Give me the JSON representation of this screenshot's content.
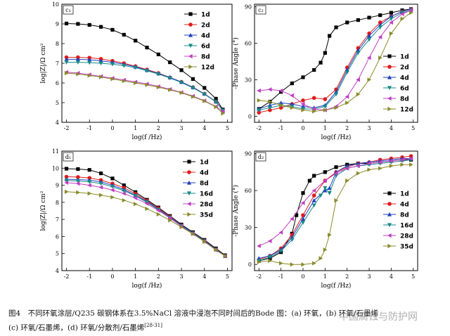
{
  "chart_data": [
    {
      "type": "line",
      "panel_label": "c₁",
      "xlabel": "log(f /Hz)",
      "ylabel": "log|Z|/Ω cm²",
      "xlim": [
        -2.2,
        5.2
      ],
      "ylim": [
        4,
        10
      ],
      "xticks": [
        -2,
        -1,
        0,
        1,
        2,
        3,
        4,
        5
      ],
      "yticks": [
        4,
        5,
        6,
        7,
        8,
        9,
        10
      ],
      "legend_position": "top-right",
      "series": [
        {
          "name": "1d",
          "color": "#000000",
          "marker": "square",
          "x": [
            -2,
            -1.5,
            -1,
            -0.5,
            0,
            0.5,
            1,
            1.5,
            2,
            2.5,
            3,
            3.5,
            4,
            4.5,
            4.8
          ],
          "y": [
            9.02,
            9.0,
            8.95,
            8.85,
            8.7,
            8.45,
            8.15,
            7.8,
            7.45,
            7.05,
            6.65,
            6.2,
            5.75,
            5.2,
            4.65
          ]
        },
        {
          "name": "2d",
          "color": "#e01b1b",
          "marker": "circle",
          "x": [
            -2,
            -1.5,
            -1,
            -0.5,
            0,
            0.5,
            1,
            1.5,
            2,
            2.5,
            3,
            3.5,
            4,
            4.5,
            4.8
          ],
          "y": [
            7.3,
            7.3,
            7.28,
            7.22,
            7.12,
            7.0,
            6.85,
            6.68,
            6.5,
            6.28,
            6.05,
            5.78,
            5.45,
            5.05,
            4.6
          ]
        },
        {
          "name": "4d",
          "color": "#1f3fbf",
          "marker": "triangle-up",
          "x": [
            -2,
            -1.5,
            -1,
            -0.5,
            0,
            0.5,
            1,
            1.5,
            2,
            2.5,
            3,
            3.5,
            4,
            4.5,
            4.8
          ],
          "y": [
            7.2,
            7.2,
            7.18,
            7.12,
            7.05,
            6.95,
            6.82,
            6.65,
            6.48,
            6.28,
            6.05,
            5.78,
            5.45,
            5.05,
            4.6
          ]
        },
        {
          "name": "6d",
          "color": "#1a8a8a",
          "marker": "triangle-down",
          "x": [
            -2,
            -1.5,
            -1,
            -0.5,
            0,
            0.5,
            1,
            1.5,
            2,
            2.5,
            3,
            3.5,
            4,
            4.5,
            4.8
          ],
          "y": [
            7.05,
            7.05,
            7.03,
            7.0,
            6.95,
            6.88,
            6.78,
            6.62,
            6.45,
            6.25,
            6.02,
            5.75,
            5.43,
            5.03,
            4.6
          ]
        },
        {
          "name": "8d",
          "color": "#c03fc0",
          "marker": "triangle-left",
          "x": [
            -2,
            -1.5,
            -1,
            -0.5,
            0,
            0.5,
            1,
            1.5,
            2,
            2.5,
            3,
            3.5,
            4,
            4.5,
            4.8
          ],
          "y": [
            6.55,
            6.5,
            6.42,
            6.33,
            6.24,
            6.15,
            6.05,
            5.95,
            5.82,
            5.68,
            5.52,
            5.33,
            5.1,
            4.8,
            4.55
          ]
        },
        {
          "name": "12d",
          "color": "#8a8a2a",
          "marker": "triangle-right",
          "x": [
            -2,
            -1.5,
            -1,
            -0.5,
            0,
            0.5,
            1,
            1.5,
            2,
            2.5,
            3,
            3.5,
            4,
            4.5,
            4.8
          ],
          "y": [
            6.5,
            6.45,
            6.38,
            6.3,
            6.2,
            6.1,
            6.0,
            5.9,
            5.78,
            5.65,
            5.5,
            5.3,
            5.08,
            4.78,
            4.45
          ]
        }
      ]
    },
    {
      "type": "line",
      "panel_label": "c₂",
      "xlabel": "log(f /Hz)",
      "ylabel": "-Phase Angle (°)",
      "xlim": [
        -2.2,
        5.2
      ],
      "ylim": [
        -5,
        92
      ],
      "xticks": [
        -2,
        -1,
        0,
        1,
        2,
        3,
        4,
        5
      ],
      "yticks": [
        0,
        30,
        60,
        90
      ],
      "legend_position": "right",
      "series": [
        {
          "name": "1d",
          "color": "#000000",
          "marker": "square",
          "x": [
            -2,
            -1.5,
            -1,
            -0.5,
            0,
            0.5,
            0.8,
            1,
            1.2,
            1.5,
            2,
            2.5,
            3,
            3.5,
            4,
            4.5,
            4.9
          ],
          "y": [
            6,
            12,
            20,
            27,
            32,
            38,
            44,
            52,
            66,
            73,
            77,
            79,
            81,
            83,
            85,
            87,
            88
          ]
        },
        {
          "name": "2d",
          "color": "#e01b1b",
          "marker": "circle",
          "x": [
            -2,
            -1.5,
            -1,
            -0.5,
            0,
            0.5,
            1,
            1.5,
            2,
            2.5,
            3,
            3.5,
            4,
            4.5,
            4.9
          ],
          "y": [
            3,
            5,
            7,
            10,
            13,
            15,
            14,
            22,
            40,
            56,
            68,
            77,
            82,
            86,
            88
          ]
        },
        {
          "name": "4d",
          "color": "#1f3fbf",
          "marker": "triangle-up",
          "x": [
            -2,
            -1.5,
            -1,
            -0.5,
            0,
            0.5,
            1,
            1.5,
            2,
            2.5,
            3,
            3.5,
            4,
            4.5,
            4.9
          ],
          "y": [
            6,
            9,
            11,
            10,
            8,
            7,
            9,
            20,
            38,
            54,
            66,
            75,
            82,
            86,
            88
          ]
        },
        {
          "name": "6d",
          "color": "#1a8a8a",
          "marker": "triangle-down",
          "x": [
            -2,
            -1.5,
            -1,
            -0.5,
            0,
            0.5,
            1,
            1.5,
            2,
            2.5,
            3,
            3.5,
            4,
            4.5,
            4.9
          ],
          "y": [
            5,
            7,
            9,
            8,
            6,
            6,
            8,
            18,
            36,
            52,
            63,
            73,
            80,
            85,
            87
          ]
        },
        {
          "name": "8d",
          "color": "#c03fc0",
          "marker": "triangle-left",
          "x": [
            -2,
            -1.5,
            -1,
            -0.5,
            0,
            0.5,
            1,
            1.5,
            2,
            2.5,
            3,
            3.5,
            4,
            4.5,
            4.9
          ],
          "y": [
            21,
            22,
            21,
            17,
            10,
            6,
            5,
            8,
            16,
            30,
            48,
            65,
            77,
            84,
            87
          ]
        },
        {
          "name": "12d",
          "color": "#8a8a2a",
          "marker": "triangle-right",
          "x": [
            -2,
            -1.5,
            -1,
            -0.5,
            0,
            0.5,
            1,
            1.5,
            2,
            2.5,
            3,
            3.5,
            4,
            4.5,
            4.9
          ],
          "y": [
            13,
            12,
            9,
            7,
            5,
            4,
            5,
            7,
            11,
            18,
            30,
            48,
            68,
            80,
            85
          ]
        }
      ]
    },
    {
      "type": "line",
      "panel_label": "d₁",
      "xlabel": "log(f /Hz)",
      "ylabel": "log|Z|/Ω cm²",
      "xlim": [
        -2.2,
        5.2
      ],
      "ylim": [
        4,
        11
      ],
      "xticks": [
        -2,
        -1,
        0,
        1,
        2,
        3,
        4,
        5
      ],
      "yticks": [
        4,
        5,
        6,
        7,
        8,
        9,
        10,
        11
      ],
      "legend_position": "top-right",
      "series": [
        {
          "name": "1d",
          "color": "#000000",
          "marker": "square",
          "x": [
            -2,
            -1.5,
            -1,
            -0.5,
            0,
            0.5,
            1,
            1.5,
            2,
            2.5,
            3,
            3.5,
            4,
            4.5,
            4.9
          ],
          "y": [
            9.97,
            9.95,
            9.9,
            9.7,
            9.4,
            9.0,
            8.6,
            8.15,
            7.7,
            7.2,
            6.7,
            6.25,
            5.8,
            5.3,
            4.9
          ]
        },
        {
          "name": "4d",
          "color": "#e01b1b",
          "marker": "circle",
          "x": [
            -2,
            -1.5,
            -1,
            -0.5,
            0,
            0.5,
            1,
            1.5,
            2,
            2.5,
            3,
            3.5,
            4,
            4.5,
            4.9
          ],
          "y": [
            9.5,
            9.48,
            9.43,
            9.3,
            9.1,
            8.85,
            8.5,
            8.1,
            7.65,
            7.15,
            6.65,
            6.2,
            5.75,
            5.25,
            4.85
          ]
        },
        {
          "name": "8d",
          "color": "#1f3fbf",
          "marker": "triangle-up",
          "x": [
            -2,
            -1.5,
            -1,
            -0.5,
            0,
            0.5,
            1,
            1.5,
            2,
            2.5,
            3,
            3.5,
            4,
            4.5,
            4.9
          ],
          "y": [
            9.35,
            9.33,
            9.3,
            9.2,
            9.0,
            8.75,
            8.42,
            8.05,
            7.6,
            7.12,
            6.65,
            6.2,
            5.75,
            5.25,
            4.85
          ]
        },
        {
          "name": "16d",
          "color": "#1a8a8a",
          "marker": "triangle-down",
          "x": [
            -2,
            -1.5,
            -1,
            -0.5,
            0,
            0.5,
            1,
            1.5,
            2,
            2.5,
            3,
            3.5,
            4,
            4.5,
            4.9
          ],
          "y": [
            9.28,
            9.25,
            9.2,
            9.1,
            8.92,
            8.68,
            8.38,
            8.0,
            7.57,
            7.1,
            6.62,
            6.18,
            5.72,
            5.22,
            4.85
          ]
        },
        {
          "name": "28d",
          "color": "#c03fc0",
          "marker": "triangle-left",
          "x": [
            -2,
            -1.5,
            -1,
            -0.5,
            0,
            0.5,
            1,
            1.5,
            2,
            2.5,
            3,
            3.5,
            4,
            4.5,
            4.9
          ],
          "y": [
            9.15,
            9.1,
            9.0,
            8.88,
            8.72,
            8.52,
            8.25,
            7.92,
            7.52,
            7.08,
            6.6,
            6.15,
            5.7,
            5.2,
            4.85
          ]
        },
        {
          "name": "35d",
          "color": "#8a8a2a",
          "marker": "triangle-right",
          "x": [
            -2,
            -1.5,
            -1,
            -0.5,
            0,
            0.5,
            1,
            1.5,
            2,
            2.5,
            3,
            3.5,
            4,
            4.5,
            4.9
          ],
          "y": [
            8.62,
            8.58,
            8.52,
            8.42,
            8.3,
            8.12,
            7.9,
            7.62,
            7.3,
            6.95,
            6.55,
            6.15,
            5.7,
            5.22,
            4.85
          ]
        }
      ]
    },
    {
      "type": "line",
      "panel_label": "d₂",
      "xlabel": "log(f /Hz)",
      "ylabel": "-Phase Angle (°)",
      "xlim": [
        -2.2,
        5.2
      ],
      "ylim": [
        -5,
        92
      ],
      "xticks": [
        -2,
        -1,
        0,
        1,
        2,
        3,
        4,
        5
      ],
      "yticks": [
        0,
        30,
        60,
        90
      ],
      "legend_position": "right",
      "series": [
        {
          "name": "1d",
          "color": "#000000",
          "marker": "square",
          "x": [
            -2,
            -1.5,
            -1,
            -0.5,
            -0.3,
            0,
            0.3,
            0.5,
            1,
            1.5,
            2,
            2.5,
            3,
            3.5,
            4,
            4.5,
            4.9
          ],
          "y": [
            3,
            5,
            10,
            25,
            40,
            58,
            68,
            72,
            75,
            79,
            81,
            82,
            82,
            83,
            84,
            85,
            85
          ]
        },
        {
          "name": "4d",
          "color": "#e01b1b",
          "marker": "circle",
          "x": [
            -2,
            -1.5,
            -1,
            -0.5,
            0,
            0.5,
            1,
            1.5,
            2,
            2.5,
            3,
            3.5,
            4,
            4.5,
            4.9
          ],
          "y": [
            4,
            7,
            13,
            24,
            40,
            56,
            68,
            75,
            79,
            82,
            83,
            85,
            86,
            87,
            88
          ]
        },
        {
          "name": "8d",
          "color": "#1f3fbf",
          "marker": "triangle-up",
          "x": [
            -2,
            -1.5,
            -1,
            -0.5,
            0,
            0.5,
            1,
            1.2,
            1.5,
            2,
            2.5,
            3,
            3.5,
            4,
            4.5,
            4.9
          ],
          "y": [
            5,
            7,
            12,
            22,
            37,
            52,
            60,
            62,
            75,
            80,
            82,
            83,
            84,
            85,
            86,
            86
          ]
        },
        {
          "name": "16d",
          "color": "#1a8a8a",
          "marker": "triangle-down",
          "x": [
            -2,
            -1.5,
            -1,
            -0.5,
            0,
            0.5,
            0.8,
            1,
            1.2,
            1.5,
            2,
            2.5,
            3,
            3.5,
            4,
            4.5,
            4.9
          ],
          "y": [
            3,
            6,
            11,
            20,
            34,
            48,
            56,
            62,
            58,
            72,
            78,
            80,
            81,
            82,
            83,
            84,
            85
          ]
        },
        {
          "name": "28d",
          "color": "#c03fc0",
          "marker": "triangle-left",
          "x": [
            -2,
            -1.5,
            -1,
            -0.5,
            0,
            0.5,
            1,
            1.5,
            2,
            2.5,
            3,
            3.5,
            4,
            4.5,
            4.9
          ],
          "y": [
            15,
            19,
            26,
            37,
            50,
            60,
            68,
            74,
            78,
            80,
            82,
            83,
            84,
            85,
            86
          ]
        },
        {
          "name": "35d",
          "color": "#8a8a2a",
          "marker": "triangle-right",
          "x": [
            -2,
            -1.5,
            -1,
            -0.5,
            0,
            0.5,
            0.8,
            1,
            1.2,
            1.5,
            2,
            2.5,
            3,
            3.5,
            4,
            4.5,
            4.9
          ],
          "y": [
            2,
            3,
            1,
            0,
            0,
            1,
            5,
            12,
            24,
            52,
            68,
            74,
            77,
            78,
            80,
            81,
            81
          ]
        }
      ]
    }
  ],
  "caption": {
    "lead": "图4　不同环氧涂层/Q235 碳钢体系在3.5%NaCl 溶液中浸泡不同时间后的Bode 图：(a) 环氧，(b) 环氧/石墨烯",
    "line2": "(c) 环氧/石墨烯，(d) 环氧/分散剂/石墨烯",
    "ref": "[28-31]"
  },
  "watermark": "中国腐蚀与防护网"
}
